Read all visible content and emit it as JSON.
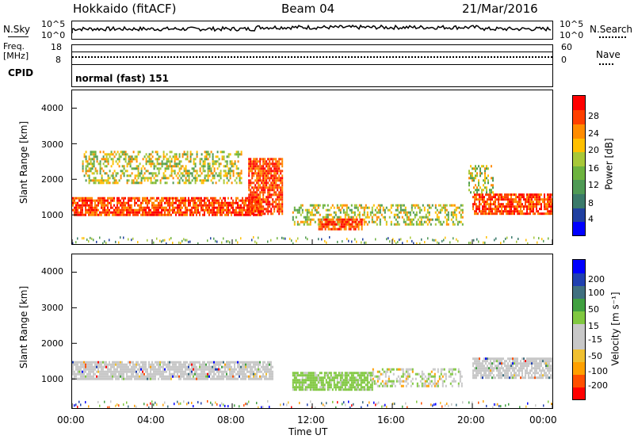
{
  "header": {
    "station": "Hokkaido (fitACF)",
    "beam": "Beam 04",
    "date": "21/Mar/2016"
  },
  "top_panel": {
    "nsky_label": "N.Sky",
    "nsky_ticks": [
      "10^5",
      "10^0"
    ],
    "nsearch_label": "N.Search",
    "nsearch_ticks": [
      "10^5",
      "10^0"
    ],
    "freq_label_1": "Freq.",
    "freq_label_2": "[MHz]",
    "freq_ticks": [
      "18",
      "8"
    ],
    "nave_label": "Nave",
    "nave_ticks": [
      "60",
      "0"
    ],
    "cpid_label": "CPID",
    "cpid_value": "normal (fast) 151"
  },
  "chart_data": [
    {
      "type": "heatmap",
      "panel": "power",
      "ylabel": "Slant Range [km]",
      "y_ticks": [
        "4000",
        "3000",
        "2000",
        "1000"
      ],
      "ylim": [
        180,
        4500
      ],
      "xlim_hours": [
        0,
        24
      ],
      "colorbar": {
        "label": "Power [dB]",
        "ticks": [
          "28",
          "24",
          "20",
          "16",
          "12",
          "8",
          "4"
        ],
        "colors": [
          "#0000ff",
          "#2040a0",
          "#3a7a6a",
          "#4f9a55",
          "#6db33f",
          "#a8c838",
          "#ffc000",
          "#ff8c00",
          "#ff4000",
          "#ff0000"
        ]
      },
      "echo_regions": [
        {
          "t": [
            0.0,
            9.5
          ],
          "range": [
            1000,
            1500
          ],
          "level": "high"
        },
        {
          "t": [
            0.5,
            8.5
          ],
          "range": [
            1900,
            2800
          ],
          "level": "medium"
        },
        {
          "t": [
            8.8,
            10.5
          ],
          "range": [
            1000,
            2600
          ],
          "level": "high"
        },
        {
          "t": [
            11.0,
            19.5
          ],
          "range": [
            700,
            1300
          ],
          "level": "medium"
        },
        {
          "t": [
            12.3,
            14.5
          ],
          "range": [
            600,
            900
          ],
          "level": "high"
        },
        {
          "t": [
            20.0,
            24.0
          ],
          "range": [
            1000,
            1600
          ],
          "level": "high"
        },
        {
          "t": [
            19.8,
            21.0
          ],
          "range": [
            1600,
            2400
          ],
          "level": "medium"
        }
      ]
    },
    {
      "type": "heatmap",
      "panel": "velocity",
      "ylabel": "Slant Range [km]",
      "y_ticks": [
        "4000",
        "3000",
        "2000",
        "1000"
      ],
      "ylim": [
        180,
        4500
      ],
      "xlim_hours": [
        0,
        24
      ],
      "colorbar": {
        "label": "Velocity [m s⁻¹]",
        "ticks": [
          "200",
          "100",
          "50",
          "15",
          "-15",
          "-50",
          "-100",
          "-200"
        ],
        "colors": [
          "#ff0000",
          "#ff5000",
          "#ffa000",
          "#f0c030",
          "#c8c8c8",
          "#c8c8c8",
          "#80c840",
          "#40a040",
          "#407080",
          "#2040b0",
          "#0000ff"
        ]
      },
      "echo_regions": [
        {
          "t": [
            0.0,
            10.0
          ],
          "range": [
            1000,
            1500
          ],
          "level": "ground"
        },
        {
          "t": [
            11.0,
            15.0
          ],
          "range": [
            700,
            1200
          ],
          "level": "green"
        },
        {
          "t": [
            15.0,
            19.5
          ],
          "range": [
            800,
            1300
          ],
          "level": "mixed"
        },
        {
          "t": [
            20.0,
            24.0
          ],
          "range": [
            1000,
            1600
          ],
          "level": "ground"
        }
      ]
    }
  ],
  "x_axis": {
    "ticks": [
      "00:00",
      "04:00",
      "08:00",
      "12:00",
      "16:00",
      "20:00",
      "00:00"
    ],
    "label": "Time UT"
  }
}
